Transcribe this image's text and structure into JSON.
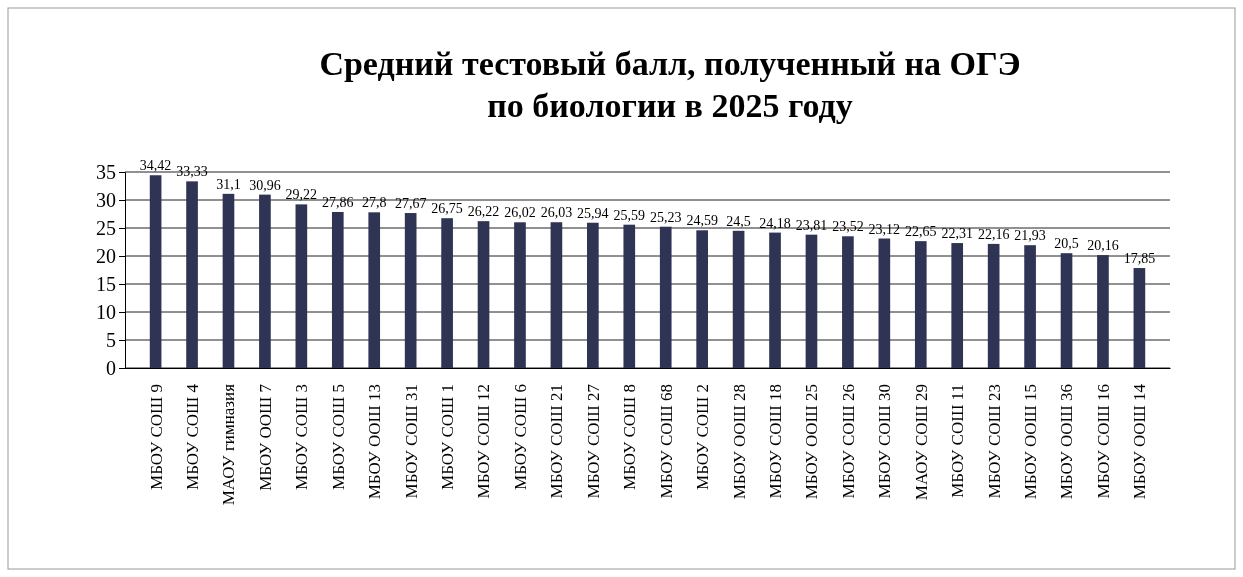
{
  "chart_data": {
    "type": "bar",
    "title": "Средний тестовый балл, полученный на ОГЭ по биологии в 2025 году",
    "categories": [
      "МБОУ СОШ 9",
      "МБОУ СОШ 4",
      "МАОУ гимназия",
      "МБОУ ООШ 7",
      "МБОУ СОШ 3",
      "МБОУ СОШ 5",
      "МБОУ ООШ 13",
      "МБОУ СОШ 31",
      "МБОУ СОШ 1",
      "МБОУ СОШ 12",
      "МБОУ СОШ 6",
      "МБОУ СОШ 21",
      "МБОУ СОШ 27",
      "МБОУ СОШ 8",
      "МБОУ СОШ 68",
      "МБОУ СОШ 2",
      "МБОУ ООШ 28",
      "МБОУ СОШ 18",
      "МБОУ ООШ 25",
      "МБОУ СОШ 26",
      "МБОУ СОШ 30",
      "МАОУ СОШ 29",
      "МБОУ СОШ 11",
      "МБОУ СОШ 23",
      "МБОУ ООШ 15",
      "МБОУ ООШ 36",
      "МБОУ СОШ 16",
      "МБОУ ООШ 14"
    ],
    "values": [
      34.42,
      33.33,
      31.1,
      30.96,
      29.22,
      27.86,
      27.8,
      27.67,
      26.75,
      26.22,
      26.02,
      26.03,
      25.94,
      25.59,
      25.23,
      24.59,
      24.5,
      24.18,
      23.81,
      23.52,
      23.12,
      22.65,
      22.31,
      22.16,
      21.93,
      20.5,
      20.16,
      17.85
    ],
    "value_labels": [
      "34,42",
      "33,33",
      "31,1",
      "30,96",
      "29,22",
      "27,86",
      "27,8",
      "27,67",
      "26,75",
      "26,22",
      "26,02",
      "26,03",
      "25,94",
      "25,59",
      "25,23",
      "24,59",
      "24,5",
      "24,18",
      "23,81",
      "23,52",
      "23,12",
      "22,65",
      "22,31",
      "22,16",
      "21,93",
      "20,5",
      "20,16",
      "17,85"
    ],
    "color": "#2f3454",
    "ylim": [
      0,
      35
    ],
    "yticks": [
      0,
      5,
      10,
      15,
      20,
      25,
      30,
      35
    ],
    "grid": "y"
  }
}
